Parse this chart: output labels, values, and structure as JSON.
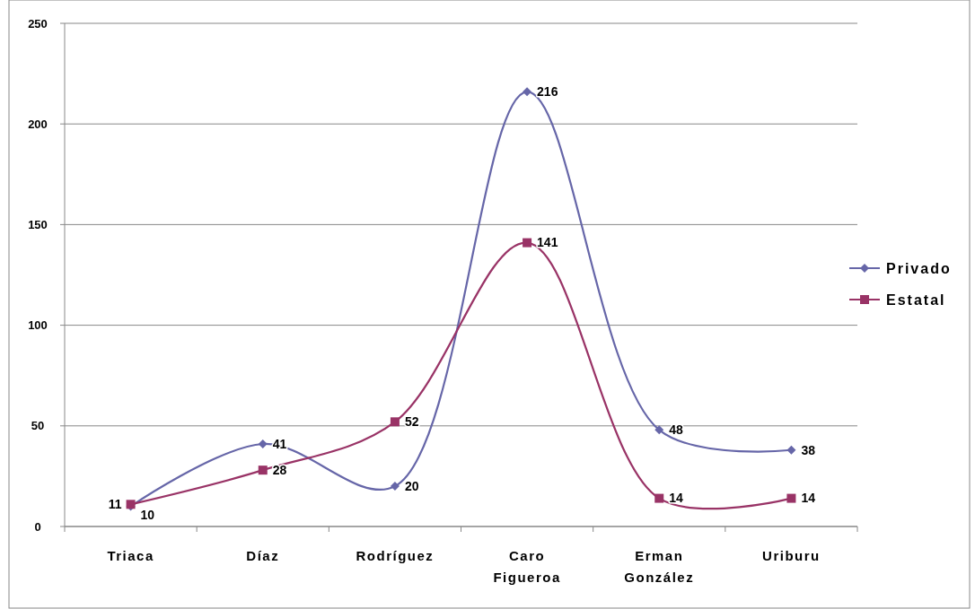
{
  "chart_data": {
    "type": "line",
    "categories": [
      "Triaca",
      "Díaz",
      "Rodríguez",
      "Caro Figueroa",
      "Erman González",
      "Uriburu"
    ],
    "series": [
      {
        "name": "Privado",
        "color": "#6666a8",
        "marker": "diamond",
        "values": [
          10,
          41,
          20,
          216,
          48,
          38
        ]
      },
      {
        "name": "Estatal",
        "color": "#993366",
        "marker": "square",
        "values": [
          11,
          28,
          52,
          141,
          14,
          14
        ]
      }
    ],
    "ylim": [
      0,
      250
    ],
    "yticks": [
      0,
      50,
      100,
      150,
      200,
      250
    ],
    "grid": "y",
    "legend": "right",
    "data_labels": true
  }
}
